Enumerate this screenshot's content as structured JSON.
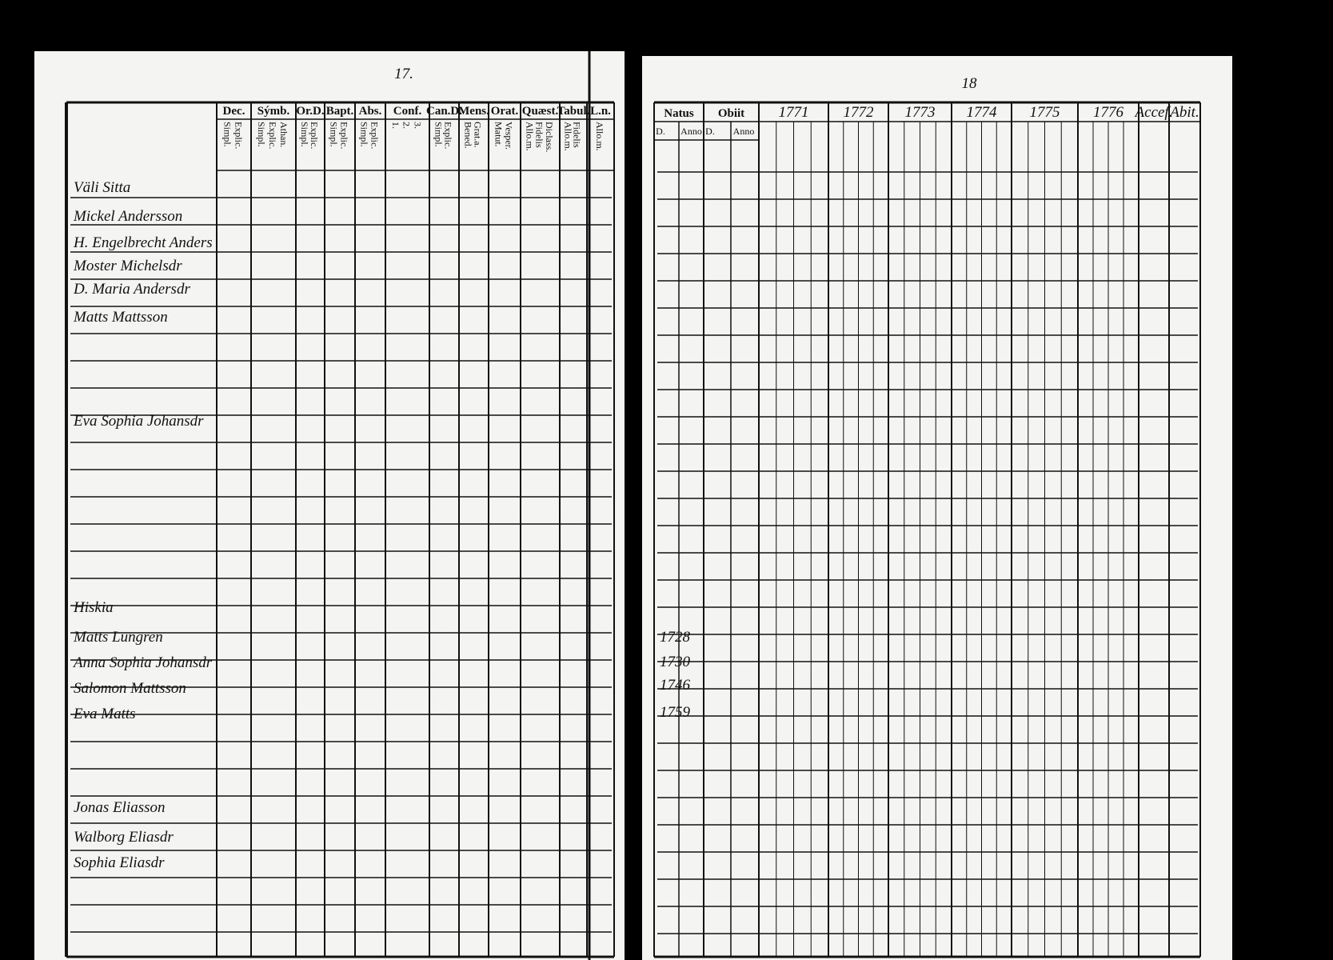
{
  "left_page": {
    "page_number": "17.",
    "columns": [
      {
        "label": "Dec.",
        "sub": [
          "Simpl.",
          "Explic."
        ]
      },
      {
        "label": "Sýmb.",
        "sub": [
          "Simpl.",
          "Explic.",
          "Athan."
        ]
      },
      {
        "label": "Or.D.",
        "sub": [
          "Simpl.",
          "Explic."
        ]
      },
      {
        "label": "Bapt.",
        "sub": [
          "Simpl.",
          "Explic."
        ]
      },
      {
        "label": "Abs.",
        "sub": [
          "Simpl.",
          "Explic."
        ]
      },
      {
        "label": "Conf.",
        "sub": [
          "1.",
          "2.",
          "3."
        ]
      },
      {
        "label": "Can.D.",
        "sub": [
          "Simpl.",
          "Explic."
        ]
      },
      {
        "label": "Mens.",
        "sub": [
          "Bened.",
          "Grat.a."
        ]
      },
      {
        "label": "Orat.",
        "sub": [
          "Matut.",
          "Vesper."
        ]
      },
      {
        "label": "Quæst.",
        "sub": [
          "Allo.m.",
          "Fidelis",
          "Diclass."
        ]
      },
      {
        "label": "Tabul.",
        "sub": [
          "Allo.m.",
          "Fidelis"
        ]
      },
      {
        "label": "L.n.",
        "sub": [
          "Allo.m."
        ]
      }
    ],
    "names": [
      "Väli Sitta",
      "Mickel Andersson",
      "H. Engelbrecht Anders",
      "Moster Michelsdr",
      "D. Maria Andersdr",
      "Matts Mattsson",
      "Eva Sophia Johansdr",
      "Hiskia",
      "Matts Lungren",
      "Anna Sophia Johansdr",
      "Salomon Mattsson",
      "Eva Matts",
      "Jonas Eliasson",
      "Walborg Eliasdr",
      "Sophia Eliasdr"
    ]
  },
  "right_page": {
    "page_number": "18",
    "columns": [
      {
        "label": "Natus",
        "sub": [
          "D.",
          "Anno"
        ]
      },
      {
        "label": "Obiit",
        "sub": [
          "D.",
          "Anno"
        ]
      },
      {
        "label": "1771",
        "sub": []
      },
      {
        "label": "1772",
        "sub": []
      },
      {
        "label": "1773",
        "sub": []
      },
      {
        "label": "1774",
        "sub": []
      },
      {
        "label": "1775",
        "sub": []
      },
      {
        "label": "1776",
        "sub": []
      },
      {
        "label": "Accef.",
        "sub": []
      },
      {
        "label": "Abit.",
        "sub": []
      }
    ],
    "birth_years": [
      "1728",
      "1730",
      "1746",
      "1759"
    ]
  }
}
